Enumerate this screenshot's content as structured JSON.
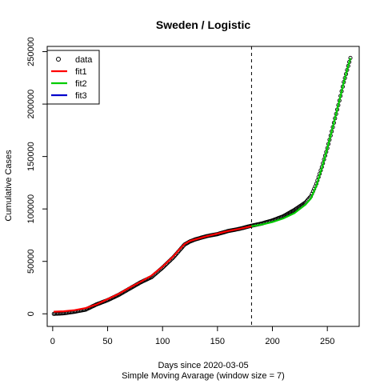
{
  "chart_data": {
    "type": "scatter",
    "title": "Sweden / Logistic",
    "xlabel": "Days since 2020-03-05",
    "subtitle": "Simple Moving Avarage (window size = 7)",
    "ylabel": "Cumulative Cases",
    "xlim": [
      -5,
      279
    ],
    "ylim": [
      -12000,
      255000
    ],
    "xticks": [
      0,
      50,
      100,
      150,
      200,
      250
    ],
    "yticks": [
      0,
      50000,
      100000,
      150000,
      200000,
      250000
    ],
    "ytick_labels": [
      "0",
      "50000",
      "100000",
      "150000",
      "200000",
      "250000"
    ],
    "vline": {
      "x": 181,
      "style": "dashed"
    },
    "legend": {
      "position": "top-left",
      "entries": [
        {
          "label": "data",
          "kind": "point",
          "color": "#000000"
        },
        {
          "label": "fit1",
          "kind": "line",
          "color": "#ff0000"
        },
        {
          "label": "fit2",
          "kind": "line",
          "color": "#00cc00"
        },
        {
          "label": "fit3",
          "kind": "line",
          "color": "#0000cc"
        }
      ]
    },
    "data_anchor_points": {
      "x": [
        1,
        10,
        20,
        30,
        40,
        50,
        60,
        70,
        80,
        90,
        100,
        110,
        115,
        120,
        125,
        130,
        140,
        150,
        160,
        170,
        181,
        190,
        200,
        210,
        220,
        230,
        235,
        240,
        245,
        250,
        255,
        260,
        265,
        271
      ],
      "y": [
        0,
        500,
        2000,
        4000,
        9000,
        13000,
        18000,
        24000,
        30000,
        35000,
        44000,
        54000,
        60000,
        66000,
        69000,
        71000,
        74000,
        76000,
        79000,
        81000,
        84000,
        86000,
        89000,
        93000,
        99000,
        106000,
        112000,
        124000,
        140000,
        158000,
        178000,
        199000,
        221000,
        244000
      ]
    },
    "series": [
      {
        "name": "fit1",
        "color": "#ff0000",
        "x": [
          1,
          10,
          20,
          30,
          40,
          50,
          60,
          70,
          80,
          90,
          100,
          110,
          115,
          120,
          125,
          130,
          140,
          150,
          160,
          170,
          181
        ],
        "y": [
          2000,
          2400,
          3500,
          5500,
          9000,
          14000,
          19000,
          25000,
          30500,
          36500,
          45000,
          55000,
          61000,
          66500,
          69500,
          71000,
          74000,
          76500,
          79000,
          81000,
          83500
        ]
      },
      {
        "name": "fit2",
        "color": "#00cc00",
        "x": [
          181,
          190,
          200,
          210,
          220,
          230,
          235,
          240,
          245,
          250,
          255,
          260,
          265,
          271
        ],
        "y": [
          83500,
          85000,
          87500,
          91000,
          96000,
          104000,
          110000,
          122000,
          139000,
          158000,
          178000,
          199000,
          221000,
          244000
        ]
      }
    ]
  }
}
